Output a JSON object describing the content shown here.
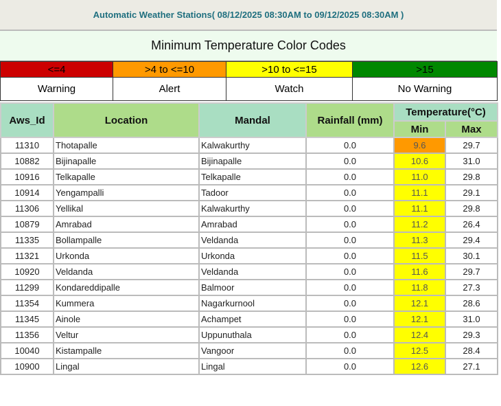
{
  "header": {
    "title": "Automatic Weather Stations( 08/12/2025 08:30AM to 09/12/2025 08:30AM )"
  },
  "legend": {
    "title": "Minimum Temperature Color Codes",
    "items": [
      {
        "range": "<=4",
        "label": "Warning",
        "color": "#cc0000"
      },
      {
        "range": ">4 to <=10",
        "label": "Alert",
        "color": "#ff9900"
      },
      {
        "range": ">10 to <=15",
        "label": "Watch",
        "color": "#ffff00"
      },
      {
        "range": ">15",
        "label": "No Warning",
        "color": "#008800"
      }
    ]
  },
  "table": {
    "headers": {
      "aws_id": "Aws_Id",
      "location": "Location",
      "mandal": "Mandal",
      "rainfall": "Rainfall (mm)",
      "temperature": "Temperature(°C)",
      "min": "Min",
      "max": "Max"
    },
    "rows": [
      {
        "id": "11310",
        "location": "Thotapalle",
        "mandal": "Kalwakurthy",
        "rain": "0.0",
        "min": "9.6",
        "max": "29.7",
        "color": "#ff9900"
      },
      {
        "id": "10882",
        "location": "Bijinapalle",
        "mandal": "Bijinapalle",
        "rain": "0.0",
        "min": "10.6",
        "max": "31.0",
        "color": "#ffff00"
      },
      {
        "id": "10916",
        "location": "Telkapalle",
        "mandal": "Telkapalle",
        "rain": "0.0",
        "min": "11.0",
        "max": "29.8",
        "color": "#ffff00"
      },
      {
        "id": "10914",
        "location": "Yengampalli",
        "mandal": "Tadoor",
        "rain": "0.0",
        "min": "11.1",
        "max": "29.1",
        "color": "#ffff00"
      },
      {
        "id": "11306",
        "location": "Yellikal",
        "mandal": "Kalwakurthy",
        "rain": "0.0",
        "min": "11.1",
        "max": "29.8",
        "color": "#ffff00"
      },
      {
        "id": "10879",
        "location": "Amrabad",
        "mandal": "Amrabad",
        "rain": "0.0",
        "min": "11.2",
        "max": "26.4",
        "color": "#ffff00"
      },
      {
        "id": "11335",
        "location": "Bollampalle",
        "mandal": "Veldanda",
        "rain": "0.0",
        "min": "11.3",
        "max": "29.4",
        "color": "#ffff00"
      },
      {
        "id": "11321",
        "location": "Urkonda",
        "mandal": "Urkonda",
        "rain": "0.0",
        "min": "11.5",
        "max": "30.1",
        "color": "#ffff00"
      },
      {
        "id": "10920",
        "location": "Veldanda",
        "mandal": "Veldanda",
        "rain": "0.0",
        "min": "11.6",
        "max": "29.7",
        "color": "#ffff00"
      },
      {
        "id": "11299",
        "location": "Kondareddipalle",
        "mandal": "Balmoor",
        "rain": "0.0",
        "min": "11.8",
        "max": "27.3",
        "color": "#ffff00"
      },
      {
        "id": "11354",
        "location": "Kummera",
        "mandal": "Nagarkurnool",
        "rain": "0.0",
        "min": "12.1",
        "max": "28.6",
        "color": "#ffff00"
      },
      {
        "id": "11345",
        "location": "Ainole",
        "mandal": "Achampet",
        "rain": "0.0",
        "min": "12.1",
        "max": "31.0",
        "color": "#ffff00"
      },
      {
        "id": "11356",
        "location": "Veltur",
        "mandal": "Uppunuthala",
        "rain": "0.0",
        "min": "12.4",
        "max": "29.3",
        "color": "#ffff00"
      },
      {
        "id": "10040",
        "location": "Kistampalle",
        "mandal": "Vangoor",
        "rain": "0.0",
        "min": "12.5",
        "max": "28.4",
        "color": "#ffff00"
      },
      {
        "id": "10900",
        "location": "Lingal",
        "mandal": "Lingal",
        "rain": "0.0",
        "min": "12.6",
        "max": "27.1",
        "color": "#ffff00"
      }
    ]
  }
}
